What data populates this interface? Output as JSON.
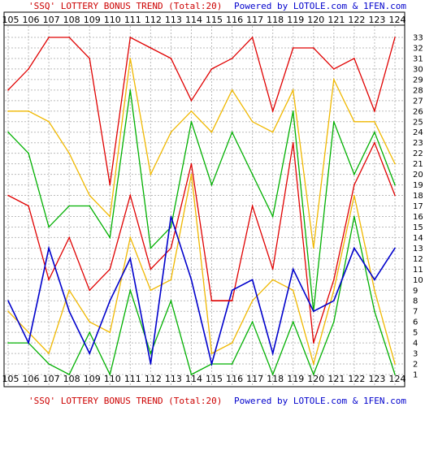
{
  "header": {
    "title_prefix": "'SSQ' LOTTERY BONUS TREND (Total:20)",
    "powered_by": "Powered by LOTOLE.com & 1FEN.com"
  },
  "footer": {
    "title_prefix": "'SSQ' LOTTERY BONUS TREND (Total:20)",
    "powered_by": "Powered by LOTOLE.com & 1FEN.com"
  },
  "colors": {
    "title": "#cc0000",
    "powered": "#0000cc",
    "grid": "#bbbbbb",
    "red": "#e00000",
    "gold": "#f0b800",
    "green": "#00b000",
    "blue": "#0000cc",
    "red_bold": "#dd0000"
  },
  "chart_data": {
    "type": "line",
    "x": [
      "105",
      "106",
      "107",
      "108",
      "109",
      "110",
      "111",
      "112",
      "113",
      "114",
      "115",
      "116",
      "117",
      "118",
      "119",
      "120",
      "121",
      "122",
      "123",
      "124"
    ],
    "ylim": [
      1,
      33
    ],
    "y_ticks": [
      1,
      2,
      3,
      4,
      5,
      6,
      7,
      8,
      9,
      10,
      11,
      12,
      13,
      14,
      15,
      16,
      17,
      18,
      19,
      20,
      21,
      22,
      23,
      24,
      25,
      26,
      27,
      28,
      29,
      30,
      31,
      32,
      33
    ],
    "grid": true,
    "series": [
      {
        "color": "red",
        "values": [
          28,
          30,
          33,
          33,
          31,
          19,
          33,
          32,
          31,
          27,
          30,
          31,
          33,
          26,
          32,
          32,
          30,
          31,
          26,
          33
        ]
      },
      {
        "color": "gold",
        "values": [
          26,
          26,
          25,
          22,
          18,
          16,
          31,
          20,
          24,
          26,
          24,
          28,
          25,
          24,
          28,
          13,
          29,
          25,
          25,
          21
        ]
      },
      {
        "color": "green",
        "values": [
          24,
          22,
          15,
          17,
          17,
          14,
          28,
          13,
          15,
          25,
          19,
          24,
          20,
          16,
          26,
          7,
          25,
          20,
          24,
          19
        ]
      },
      {
        "color": "red",
        "values": [
          18,
          17,
          10,
          14,
          9,
          11,
          18,
          11,
          13,
          21,
          8,
          8,
          17,
          11,
          23,
          4,
          10,
          19,
          23,
          18
        ]
      },
      {
        "color": "gold",
        "values": [
          7,
          5,
          3,
          9,
          6,
          5,
          14,
          9,
          10,
          20,
          3,
          4,
          8,
          10,
          9,
          2,
          9,
          18,
          9,
          2
        ]
      },
      {
        "color": "green",
        "values": [
          4,
          4,
          2,
          1,
          5,
          1,
          9,
          3,
          8,
          1,
          2,
          2,
          6,
          1,
          6,
          1,
          6,
          16,
          7,
          1
        ]
      },
      {
        "color": "blue",
        "values": [
          8,
          4,
          13,
          7,
          3,
          8,
          12,
          2,
          16,
          10,
          2,
          9,
          10,
          3,
          11,
          7,
          8,
          13,
          10,
          13
        ]
      },
      {
        "color": "red_bold",
        "values": [
          null,
          null,
          null,
          null,
          null,
          null,
          null,
          null,
          null,
          null,
          8,
          8,
          null,
          null,
          null,
          null,
          null,
          null,
          null,
          null
        ]
      }
    ]
  }
}
